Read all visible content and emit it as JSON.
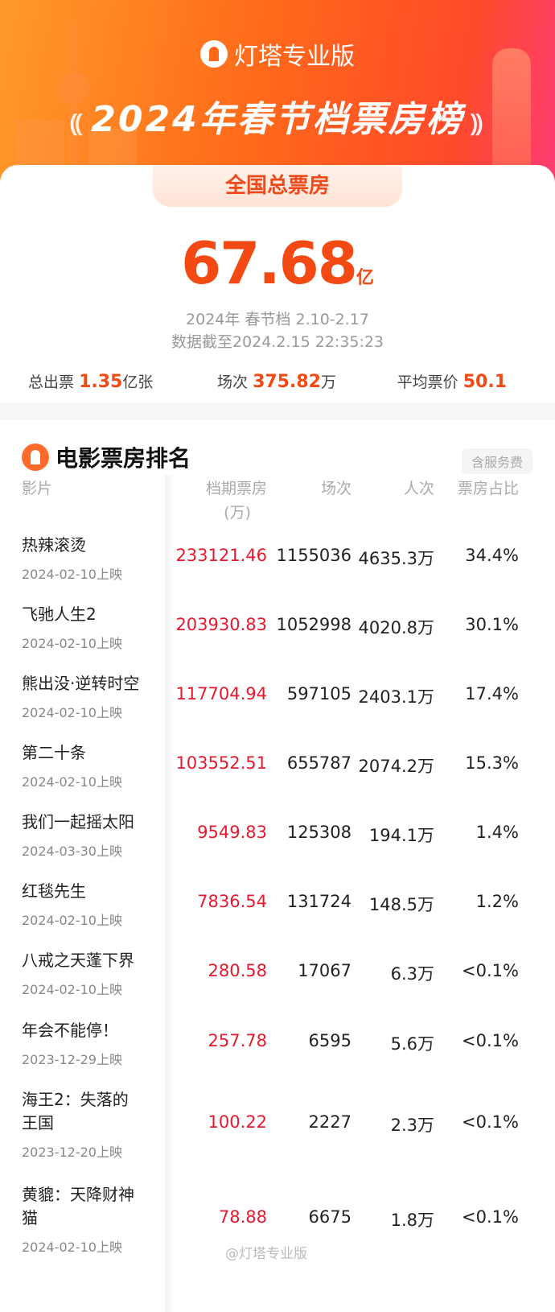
{
  "header": {
    "brand": "灯塔专业版",
    "title": "2024年春节档票房榜",
    "tab": "全国总票房"
  },
  "summary": {
    "total": "67.68",
    "total_unit": "亿",
    "period": "2024年 春节档 2.10-2.17",
    "updated": "数据截至2024.2.15 22:35:23",
    "tickets_label": "总出票",
    "tickets_value": "1.35",
    "tickets_unit": "亿张",
    "shows_label": "场次",
    "shows_value": "375.82",
    "shows_unit": "万",
    "price_label": "平均票价",
    "price_value": "50.1"
  },
  "ranking": {
    "title": "电影票房排名",
    "fee_badge": "含服务费",
    "columns": [
      "影片",
      "档期票房",
      "(万)",
      "场次",
      "人次",
      "票房占比"
    ],
    "rows": [
      {
        "name": "热辣滚烫",
        "date": "2024-02-10上映",
        "box": "233121.46",
        "shows": "1155036",
        "people": "4635.3万",
        "share": "34.4%"
      },
      {
        "name": "飞驰人生2",
        "date": "2024-02-10上映",
        "box": "203930.83",
        "shows": "1052998",
        "people": "4020.8万",
        "share": "30.1%"
      },
      {
        "name": "熊出没·逆转时空",
        "date": "2024-02-10上映",
        "box": "117704.94",
        "shows": "597105",
        "people": "2403.1万",
        "share": "17.4%"
      },
      {
        "name": "第二十条",
        "date": "2024-02-10上映",
        "box": "103552.51",
        "shows": "655787",
        "people": "2074.2万",
        "share": "15.3%"
      },
      {
        "name": "我们一起摇太阳",
        "date": "2024-03-30上映",
        "box": "9549.83",
        "shows": "125308",
        "people": "194.1万",
        "share": "1.4%"
      },
      {
        "name": "红毯先生",
        "date": "2024-02-10上映",
        "box": "7836.54",
        "shows": "131724",
        "people": "148.5万",
        "share": "1.2%"
      },
      {
        "name": "八戒之天蓬下界",
        "date": "2024-02-10上映",
        "box": "280.58",
        "shows": "17067",
        "people": "6.3万",
        "share": "<0.1%"
      },
      {
        "name": "年会不能停！",
        "date": "2023-12-29上映",
        "box": "257.78",
        "shows": "6595",
        "people": "5.6万",
        "share": "<0.1%"
      },
      {
        "name": "海王2：失落的王国",
        "date": "2023-12-20上映",
        "box": "100.22",
        "shows": "2227",
        "people": "2.3万",
        "share": "<0.1%"
      },
      {
        "name": "黄貔：天降财神猫",
        "date": "2024-02-10上映",
        "box": "78.88",
        "shows": "6675",
        "people": "1.8万",
        "share": "<0.1%"
      }
    ]
  },
  "watermark": "@灯塔专业版"
}
